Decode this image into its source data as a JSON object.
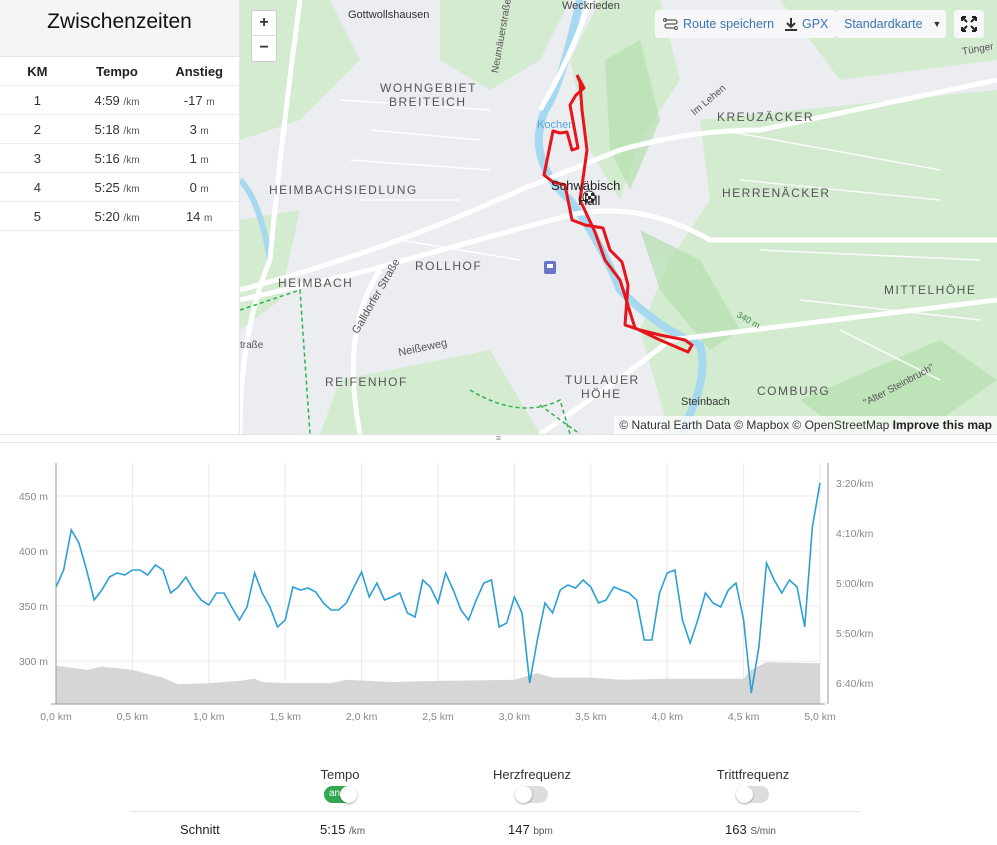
{
  "splits": {
    "title": "Zwischenzeiten",
    "headers": [
      "KM",
      "Tempo",
      "Anstieg"
    ],
    "rows": [
      {
        "km": "1",
        "pace": "4:59",
        "pace_unit": "/km",
        "climb": "-17",
        "climb_unit": "m"
      },
      {
        "km": "2",
        "pace": "5:18",
        "pace_unit": "/km",
        "climb": "3",
        "climb_unit": "m"
      },
      {
        "km": "3",
        "pace": "5:16",
        "pace_unit": "/km",
        "climb": "1",
        "climb_unit": "m"
      },
      {
        "km": "4",
        "pace": "5:25",
        "pace_unit": "/km",
        "climb": "0",
        "climb_unit": "m"
      },
      {
        "km": "5",
        "pace": "5:20",
        "pace_unit": "/km",
        "climb": "14",
        "climb_unit": "m"
      }
    ]
  },
  "map": {
    "zoom_in": "+",
    "zoom_out": "−",
    "save_route": "Route speichern",
    "gpx": "GPX",
    "style": "Standardkarte",
    "labels": [
      "Gottwollshausen",
      "WOHNGEBIET",
      "BREITEICH",
      "HEIMBACHSIEDLUNG",
      "HEIMBACH",
      "ROLLHOF",
      "REIFENHOF",
      "TULLAUER",
      "HÖHE",
      "KREUZÄCKER",
      "HERRENÄCKER",
      "MITTELHÖHE",
      "COMBURG",
      "Schwäbisch",
      "Hall",
      "Kocher",
      "Neumäuerstraße",
      "Galldorfer Straße",
      "Neißeweg",
      "Steinbach",
      "\"Alter Steinbruch\"",
      "Im Lehen",
      "340 m",
      "Tünger",
      "Weckrieden",
      "traße"
    ],
    "attribution": "© Natural Earth Data © Mapbox © OpenStreetMap",
    "improve": "Improve this map",
    "route_color": "#e8141c"
  },
  "chart_data": {
    "type": "line",
    "x_unit": "km",
    "xlim": [
      0,
      5
    ],
    "x_ticks": [
      "0,0 km",
      "0,5 km",
      "1,0 km",
      "1,5 km",
      "2,0 km",
      "2,5 km",
      "3,0 km",
      "3,5 km",
      "4,0 km",
      "4,5 km",
      "5,0 km"
    ],
    "left_axis": {
      "ticks": [
        "450 m",
        "400 m",
        "350 m",
        "300 m"
      ],
      "tick_values": [
        450,
        400,
        350,
        300
      ],
      "ylim": [
        261,
        480
      ]
    },
    "right_axis": {
      "ticks": [
        "3:20/km",
        "4:10/km",
        "5:00/km",
        "5:50/km",
        "6:40/km"
      ],
      "tick_values": [
        200,
        250,
        300,
        350,
        400
      ],
      "ylim": [
        180,
        421
      ],
      "inverted": true
    },
    "grid": true,
    "series": [
      {
        "kind": "area",
        "color": "#d6d6d6",
        "axis": "left",
        "x": [
          0,
          0.2,
          0.3,
          0.5,
          0.7,
          0.8,
          1.0,
          1.2,
          1.3,
          1.35,
          1.5,
          1.8,
          1.9,
          2.2,
          2.5,
          3.0,
          3.15,
          3.25,
          3.5,
          3.7,
          4.0,
          4.5,
          4.55,
          4.65,
          5.0
        ],
        "values": [
          296,
          292,
          295,
          292,
          285,
          279,
          280,
          282,
          284,
          281,
          280,
          280,
          283,
          281,
          282,
          283,
          289,
          285,
          285,
          283,
          284,
          284,
          292,
          299,
          298
        ]
      },
      {
        "kind": "line",
        "color": "#2b9fd6",
        "axis": "right",
        "x_step": 0.05,
        "values": [
          304,
          287,
          247,
          260,
          287,
          317,
          307,
          294,
          290,
          292,
          287,
          287,
          292,
          282,
          287,
          310,
          304,
          294,
          307,
          317,
          322,
          310,
          310,
          324,
          337,
          324,
          290,
          310,
          324,
          344,
          337,
          304,
          307,
          305,
          309,
          320,
          327,
          327,
          320,
          304,
          289,
          314,
          300,
          317,
          314,
          310,
          330,
          334,
          297,
          304,
          320,
          290,
          307,
          327,
          337,
          317,
          300,
          297,
          344,
          340,
          314,
          330,
          400,
          357,
          320,
          330,
          307,
          302,
          305,
          297,
          304,
          320,
          317,
          304,
          307,
          310,
          317,
          357,
          357,
          310,
          290,
          287,
          337,
          360,
          337,
          310,
          320,
          324,
          307,
          300,
          337,
          410,
          364,
          280,
          297,
          310,
          297,
          304,
          344,
          244,
          200
        ]
      }
    ]
  },
  "stats": {
    "columns": [
      {
        "label": "Tempo",
        "toggle": "an",
        "on": true
      },
      {
        "label": "Herzfrequenz",
        "on": false
      },
      {
        "label": "Trittfrequenz",
        "on": false
      }
    ],
    "row_label": "Schnitt",
    "values": [
      {
        "v": "5:15",
        "u": "/km"
      },
      {
        "v": "147",
        "u": "bpm"
      },
      {
        "v": "163",
        "u": "S/min"
      }
    ]
  }
}
